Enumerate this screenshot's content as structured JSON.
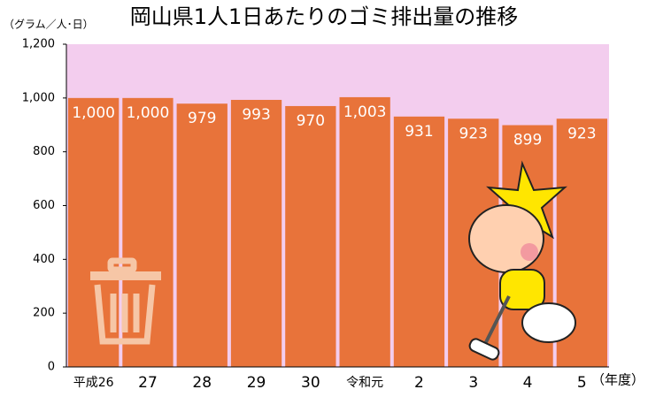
{
  "chart_data": {
    "type": "bar",
    "title": "岡山県1人1日あたりのゴミ排出量の推移",
    "y_label": "（グラム／人･日）",
    "x_label": "（年度）",
    "categories": [
      "平成26",
      "27",
      "28",
      "29",
      "30",
      "令和元",
      "2",
      "3",
      "4",
      "5"
    ],
    "values": [
      1000,
      1000,
      979,
      993,
      970,
      1003,
      931,
      923,
      899,
      923
    ],
    "value_labels": [
      "1,000",
      "1,000",
      "979",
      "993",
      "970",
      "1,003",
      "931",
      "923",
      "899",
      "923"
    ],
    "color": "#e8733a",
    "background": "#f3cdee",
    "ylim": [
      0,
      1200
    ],
    "yticks": [
      0,
      200,
      400,
      600,
      800,
      {
        "value": 1000,
        "label": "1,000"
      },
      {
        "value": 1200,
        "label": "1,200"
      }
    ]
  }
}
